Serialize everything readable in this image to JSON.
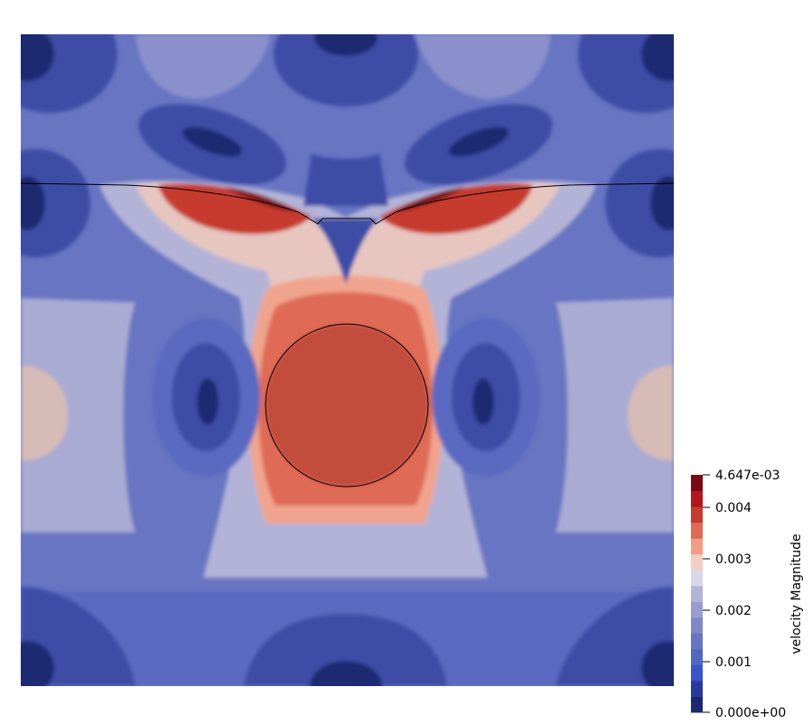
{
  "chart_data": {
    "type": "heatmap",
    "scalar_field": "velocity Magnitude",
    "colormap": "cool-to-warm",
    "color_range": [
      0.0,
      0.004647
    ],
    "discrete_levels": 14,
    "colorbar": {
      "title": "velocity Magnitude",
      "min_label": "0.000e+00",
      "max_label": "4.647e-03",
      "ticks": [
        {
          "value": 0.001,
          "label": "0.001"
        },
        {
          "value": 0.002,
          "label": "0.002"
        },
        {
          "value": 0.003,
          "label": "0.003"
        },
        {
          "value": 0.004,
          "label": "0.004"
        }
      ],
      "placement": "right"
    },
    "palette": [
      "#1b2a6e",
      "#283a9e",
      "#3a55cc",
      "#5068c2",
      "#6876c2",
      "#8089c8",
      "#9a9cd0",
      "#b3b5d8",
      "#d9d8ea",
      "#f3cfc6",
      "#f39c87",
      "#df6a55",
      "#c63b2e",
      "#b3161c",
      "#7b0a10"
    ],
    "interfaces": [
      "free surface",
      "circular body outline"
    ]
  }
}
